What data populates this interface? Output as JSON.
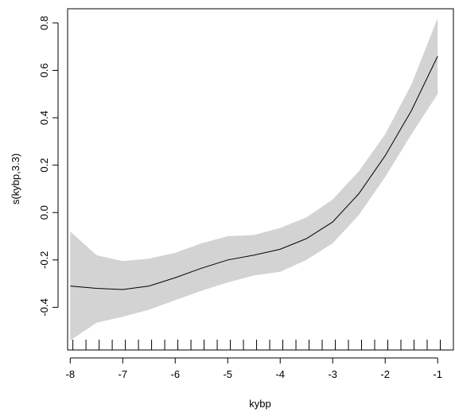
{
  "chart_data": {
    "type": "line",
    "title": "",
    "xlabel": "kybp",
    "ylabel": "s(kybp,3.3)",
    "xlim": [
      -8.05,
      -0.7
    ],
    "ylim": [
      -0.58,
      0.86
    ],
    "x_ticks": [
      -8,
      -7,
      -6,
      -5,
      -4,
      -3,
      -2,
      -1
    ],
    "x_tick_labels": [
      "-8",
      "-7",
      "-6",
      "-5",
      "-4",
      "-3",
      "-2",
      "-1"
    ],
    "y_ticks": [
      -0.4,
      -0.2,
      0.0,
      0.2,
      0.4,
      0.6,
      0.8
    ],
    "y_tick_labels": [
      "-0.4",
      "-0.2",
      "0.0",
      "0.2",
      "0.4",
      "0.6",
      "0.8"
    ],
    "grid": false,
    "rug": [
      -7.95,
      -7.7,
      -7.45,
      -7.2,
      -6.95,
      -6.7,
      -6.45,
      -6.2,
      -5.95,
      -5.7,
      -5.45,
      -5.2,
      -4.95,
      -4.7,
      -4.45,
      -4.2,
      -3.95,
      -3.7,
      -3.45,
      -3.2,
      -2.95,
      -2.7,
      -2.45,
      -2.2,
      -1.95,
      -1.7,
      -1.45,
      -1.2,
      -0.95
    ],
    "series": [
      {
        "x": [
          -8,
          -7.5,
          -7,
          -6.5,
          -6,
          -5.5,
          -5,
          -4.5,
          -4,
          -3.5,
          -3,
          -2.5,
          -2,
          -1.5,
          -1
        ],
        "y": [
          -0.31,
          -0.32,
          -0.325,
          -0.31,
          -0.275,
          -0.235,
          -0.2,
          -0.18,
          -0.155,
          -0.11,
          -0.04,
          0.08,
          0.24,
          0.43,
          0.66
        ],
        "lower": [
          -0.54,
          -0.465,
          -0.44,
          -0.41,
          -0.37,
          -0.33,
          -0.295,
          -0.265,
          -0.25,
          -0.2,
          -0.13,
          -0.01,
          0.15,
          0.33,
          0.5
        ],
        "upper": [
          -0.08,
          -0.18,
          -0.205,
          -0.195,
          -0.17,
          -0.13,
          -0.1,
          -0.095,
          -0.065,
          -0.02,
          0.055,
          0.175,
          0.33,
          0.54,
          0.82
        ],
        "line_color": "#000000",
        "band_color": "#d3d3d3"
      }
    ]
  }
}
